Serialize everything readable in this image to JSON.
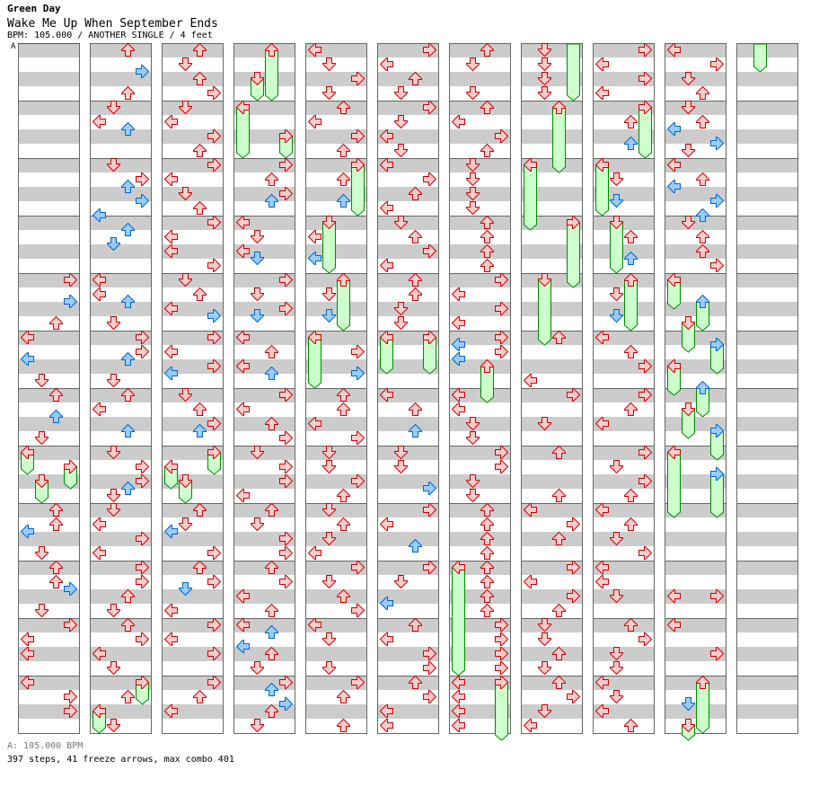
{
  "header": {
    "artist": "Green Day",
    "title": "Wake Me Up When September Ends",
    "info": "BPM: 105.000 / ANOTHER SINGLE / 4 feet",
    "bpm_marker": "A"
  },
  "footer": {
    "bpm": "A: 105.000 BPM",
    "stats": "397 steps, 41 freeze arrows, max combo 401"
  },
  "colors": {
    "quarter_fill": "#ffcccc",
    "quarter_stroke": "#cc0000",
    "eighth_fill": "#99ccff",
    "eighth_stroke": "#0066cc",
    "freeze_fill": "#ccffcc",
    "freeze_stroke": "#008800",
    "stripe": "#cccccc",
    "border": "#666666",
    "bpm_line": "#0066cc"
  },
  "chart": {
    "measures_per_column": 12,
    "columns": [
      {
        "notes": "32R 35R 38U 40L 43L 46D 48U 51U 54D 64U 66U 67L 70D 72U 74U 75R 78D 80R 82L 84L 88L 90R 92R",
        "freezes": "56L60 58R62 60D64"
      },
      {
        "notes": "0U 3R 6U 8D 10L 11U 16D 18R 19U 21R 23L 25U 27D 32L 34L 35U 38D 40R 42R 43U 46D 48U 50L 53U 56D 58R 60R 61U 62D 64D 66L 68R 70L 72R 74R 76U 78D 80U 82R 84L 86D 90U 94D",
        "freezes": "88R92 92L96"
      },
      {
        "notes": "0U 2D 4U 6R 8D 10L 12R 14U 16R 18L 20D 22U 24R 26L 28L 30R 32D 34U 36L 37R 40R 42L 44R 45L 48D 50U 52R 53U 64U 66D 67L 70R 72U 74R 75D 78L 80R 82L 84R 88R 90U 92L",
        "freezes": "56R60 58L62 60D64"
      },
      {
        "notes": "16R 18U 20R 21U 24L 26D 28L 29D 32R 34D 36R 37D 40L 42U 44L 45U 48R 50L 52U 54R 56D 58R 60R 62L 64U 66D 68R 70R 72U 74R 76L 78U 80L 81U 83L 84U 86D 88R 89U 91R 92U 94D",
        "freezes": "0U8 4D8 8L16 12R16"
      },
      {
        "notes": "0L 2D 4R 6D 8U 10L 12R 14U 18U 21U 26L 29L 34D 37D 42R 45R 48U 50U 52L 54R 56D 58D 60R 62U 64D 66U 68D 70L 72R 74D 76U 78R 80L 82D 86D 88R 90U 94U",
        "freezes": "16R24 24D32 32U40 40L48"
      },
      {
        "notes": "0R 2L 4U 6D 8R 10D 12L 14D 16L 18R 20U 22L 24D 26U 28R 30L 32U 34U 36D 38D 48L 50U 53U 56D 58D 61R 64R 66L 69U 72R 74D 77L 80U 82L 84R 86R 88U 90R 92L 94L",
        "freezes": "40L46 40R46"
      },
      {
        "notes": "0U 2D 6D 8U 10L 12R 14U 16D 18D 20D 22D 24U 26U 28U 30U 32R 34L 36R 38L 40R 41L 42R 43L 48L 50L 52D 54D 56R 58R 60D 62D 64U 66U 68U 70U 72U 74U 76U 78U 80R 82R 84R 86R 88L 90L 92L 94L",
        "freezes": "44U50 72L88 88R97"
      },
      {
        "notes": "0D 2D 4D 6D 40U 46L 48R 52D 56U 62U 64L 66R 68U 72R 74L 76R 78U 80D 82D 84U 86D 88U 90R 92D 94L",
        "freezes": "8U18 16L26 24R34 32D42",
        "tails": "R8"
      },
      {
        "notes": "0R 2L 4R 6L 10U 13U 18D 21D 26U 29U 34D 37D 40L 42U 44R 48R 50U 52L 56R 58D 60R 62U 64L 66U 68D 70R 72L 74L 76D 80U 82R 84D 86D 88L 90D 92L 94U",
        "freezes": "8R16 16L24 24D32 32U40"
      },
      {
        "notes": "0L 2R 4D 6U 8D 10U 11L 13R 14D 16L 18U 19L 21R 23U 24D 26U 28U 30R 76L 76R 80L 84R 91D",
        "freezes": "32L37 35U40 38D43 41R46 44L49 47U52 50D55 53R58 56L66 59R66 88U96 94D97"
      },
      {
        "notes": "",
        "freezes": "",
        "tails": "D4"
      }
    ]
  }
}
